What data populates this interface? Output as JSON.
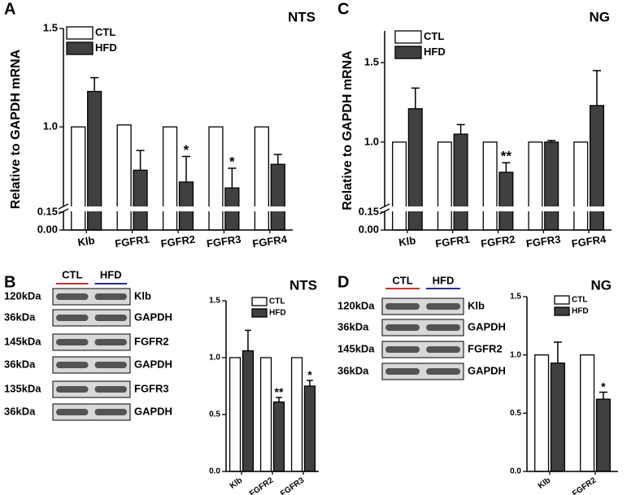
{
  "chart_data": [
    {
      "type": "bar",
      "panel": "A",
      "title": "NTS",
      "ylabel": "Relative to GAPDH mRNA",
      "categories": [
        "Klb",
        "FGFR1",
        "FGFR2",
        "FGFR3",
        "FGFR4"
      ],
      "series": [
        {
          "name": "CTL",
          "color": "#ffffff",
          "values": [
            1.0,
            1.01,
            1.0,
            1.0,
            1.0
          ]
        },
        {
          "name": "HFD",
          "color": "#404040",
          "values": [
            1.18,
            0.78,
            0.72,
            0.69,
            0.81
          ],
          "errors": [
            0.07,
            0.1,
            0.13,
            0.1,
            0.05
          ],
          "significance": [
            null,
            null,
            "*",
            "*",
            null
          ]
        }
      ],
      "ylim": [
        0,
        1.5
      ],
      "ybreak": [
        0.15,
        0.6
      ],
      "yticks": [
        {
          "value": 0,
          "label": "0.00"
        },
        0.15,
        {
          "value": 1,
          "label": "1.0"
        },
        1.5
      ]
    },
    {
      "type": "bar",
      "panel": "B",
      "title": "NTS",
      "categories": [
        "Klb",
        "FGFR2",
        "FGFR3"
      ],
      "series": [
        {
          "name": "CTL",
          "color": "#ffffff",
          "values": [
            1.0,
            1.0,
            1.0
          ]
        },
        {
          "name": "HFD",
          "color": "#404040",
          "values": [
            1.06,
            0.61,
            0.75
          ],
          "errors": [
            0.18,
            0.04,
            0.05
          ],
          "significance": [
            null,
            "**",
            "*"
          ]
        }
      ],
      "ylim": [
        0,
        1.5
      ],
      "yticks": [
        {
          "value": 0,
          "label": "0.0"
        },
        0.5,
        {
          "value": 1,
          "label": "1.0"
        },
        1.5
      ]
    },
    {
      "type": "bar",
      "panel": "C",
      "title": "NG",
      "ylabel": "Relative to GAPDH mRNA",
      "categories": [
        "Klb",
        "FGFR1",
        "FGFR2",
        "FGFR3",
        "FGFR4"
      ],
      "series": [
        {
          "name": "CTL",
          "color": "#ffffff",
          "values": [
            1.0,
            1.0,
            1.0,
            1.0,
            1.0
          ]
        },
        {
          "name": "HFD",
          "color": "#404040",
          "values": [
            1.21,
            1.05,
            0.81,
            1.0,
            1.23
          ],
          "errors": [
            0.13,
            0.06,
            0.06,
            0.01,
            0.22
          ],
          "significance": [
            null,
            null,
            "**",
            null,
            null
          ]
        }
      ],
      "ylim": [
        0,
        1.7
      ],
      "ybreak": [
        0.15,
        0.6
      ],
      "yticks": [
        {
          "value": 0,
          "label": "0.00"
        },
        0.15,
        {
          "value": 1,
          "label": "1.0"
        },
        1.5
      ]
    },
    {
      "type": "bar",
      "panel": "D",
      "title": "NG",
      "categories": [
        "Klb",
        "FGFR2"
      ],
      "series": [
        {
          "name": "CTL",
          "color": "#ffffff",
          "values": [
            1.0,
            1.0
          ]
        },
        {
          "name": "HFD",
          "color": "#404040",
          "values": [
            0.93,
            0.62
          ],
          "errors": [
            0.18,
            0.06
          ],
          "significance": [
            null,
            "*"
          ]
        }
      ],
      "ylim": [
        0,
        1.5
      ],
      "yticks": [
        {
          "value": 0,
          "label": "0.0"
        },
        0.5,
        {
          "value": 1,
          "label": "1.0"
        },
        1.5
      ]
    }
  ],
  "blots": [
    {
      "groups": [
        "CTL",
        "HFD"
      ],
      "group_colors": [
        "#d03030",
        "#2a2a90"
      ],
      "rows": [
        {
          "size": "120kDa",
          "protein": "Klb"
        },
        {
          "size": "36kDa",
          "protein": "GAPDH"
        },
        {
          "size": "145kDa",
          "protein": "FGFR2"
        },
        {
          "size": "36kDa",
          "protein": "GAPDH"
        },
        {
          "size": "135kDa",
          "protein": "FGFR3"
        },
        {
          "size": "36kDa",
          "protein": "GAPDH"
        }
      ]
    },
    {
      "groups": [
        "CTL",
        "HFD"
      ],
      "group_colors": [
        "#d03030",
        "#2a2a90"
      ],
      "rows": [
        {
          "size": "120kDa",
          "protein": "Klb"
        },
        {
          "size": "36kDa",
          "protein": "GAPDH"
        },
        {
          "size": "145kDa",
          "protein": "FGFR2"
        },
        {
          "size": "36kDa",
          "protein": "GAPDH"
        }
      ]
    }
  ]
}
